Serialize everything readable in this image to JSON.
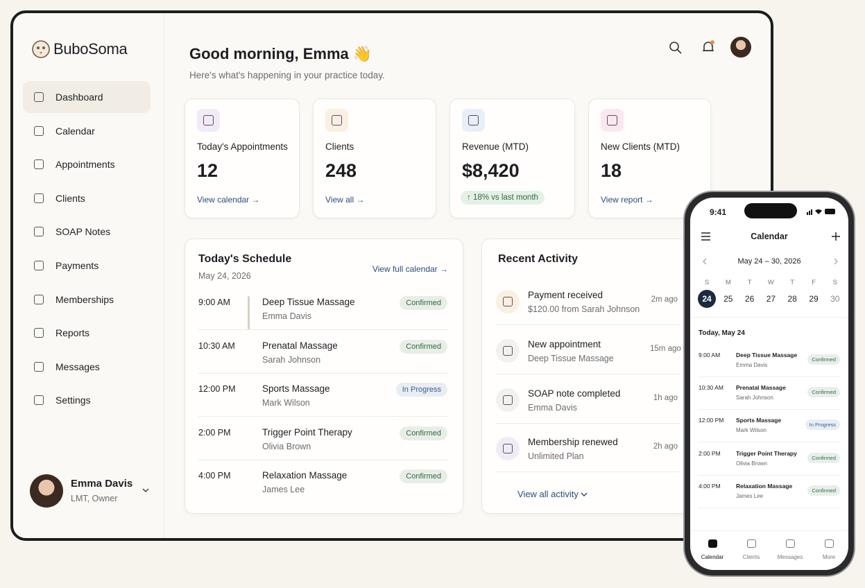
{
  "app": {
    "name": "BuboSoma"
  },
  "nav": [
    "Dashboard",
    "Calendar",
    "Appointments",
    "Clients",
    "SOAP Notes",
    "Payments",
    "Memberships",
    "Reports",
    "Messages",
    "Settings"
  ],
  "user": {
    "name": "Emma Davis",
    "role": "LMT, Owner"
  },
  "header": {
    "greeting": "Good morning, Emma 👋",
    "subtitle": "Here's what's happening in your practice today."
  },
  "stats": [
    {
      "label": "Today's Appointments",
      "value": "12",
      "link": "View calendar →"
    },
    {
      "label": "Clients",
      "value": "248",
      "link": "View all →"
    },
    {
      "label": "Revenue (MTD)",
      "value": "$8,420",
      "badge": "↑ 18% vs last month"
    },
    {
      "label": "New Clients (MTD)",
      "value": "18",
      "link": "View report →"
    }
  ],
  "schedule": {
    "title": "Today's Schedule",
    "date": "May 24, 2026",
    "link": "View full calendar →",
    "items": [
      {
        "time": "9:00 AM",
        "service": "Deep Tissue Massage",
        "client": "Emma Davis",
        "status": "Confirmed",
        "color": "#2e6b3f"
      },
      {
        "time": "10:30 AM",
        "service": "Prenatal Massage",
        "client": "Sarah Johnson",
        "status": "Confirmed",
        "color": "#2e6b3f"
      },
      {
        "time": "12:00 PM",
        "service": "Sports Massage",
        "client": "Mark Wilson",
        "status": "In Progress",
        "color": "#3a5f95"
      },
      {
        "time": "2:00 PM",
        "service": "Trigger Point Therapy",
        "client": "Olivia Brown",
        "status": "Confirmed",
        "color": "#2e6b3f"
      },
      {
        "time": "4:00 PM",
        "service": "Relaxation Massage",
        "client": "James Lee",
        "status": "Confirmed",
        "color": "#2e6b3f"
      }
    ]
  },
  "activity": {
    "title": "Recent Activity",
    "link": "View all activity",
    "items": [
      {
        "title": "Payment received",
        "detail": "$120.00 from Sarah Johnson",
        "time": "2m ago"
      },
      {
        "title": "New appointment",
        "detail": "Deep Tissue Massage",
        "time": "15m ago"
      },
      {
        "title": "SOAP note completed",
        "detail": "Emma Davis",
        "time": "1h ago"
      },
      {
        "title": "Membership renewed",
        "detail": "Unlimited Plan",
        "time": "2h ago"
      }
    ]
  },
  "phone": {
    "clock": "9:41",
    "title": "Calendar",
    "range": "May 24 – 30, 2026",
    "weekdays": [
      "S",
      "M",
      "T",
      "W",
      "T",
      "F",
      "S"
    ],
    "dates": [
      "24",
      "25",
      "26",
      "27",
      "28",
      "29",
      "30"
    ],
    "day_label": "Today, May 24",
    "items": [
      {
        "time": "9:00 AM",
        "service": "Deep Tissue Massage",
        "client": "Emma Davis",
        "status": "Confirmed",
        "color": "#2e6b3f"
      },
      {
        "time": "10:30 AM",
        "service": "Prenatal Massage",
        "client": "Sarah Johnson",
        "status": "Confirmed",
        "color": "#2e6b3f"
      },
      {
        "time": "12:00 PM",
        "service": "Sports Massage",
        "client": "Mark Wilson",
        "status": "In Progress",
        "color": "#3a5f95"
      },
      {
        "time": "2:00 PM",
        "service": "Trigger Point Therapy",
        "client": "Olivia Brown",
        "status": "Confirmed",
        "color": "#2e6b3f"
      },
      {
        "time": "4:00 PM",
        "service": "Relaxation Massage",
        "client": "James Lee",
        "status": "Confirmed",
        "color": "#2e6b3f"
      }
    ],
    "tabs": [
      "Calendar",
      "Clients",
      "Messages",
      "More"
    ]
  }
}
